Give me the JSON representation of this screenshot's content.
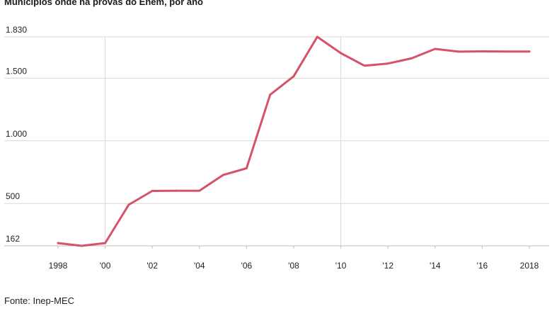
{
  "title": "Municípios onde há provas do Enem, por ano",
  "source": "Fonte: Inep-MEC",
  "colors": {
    "line": "#d6526a",
    "grid": "#d9d9d9",
    "axis": "#cfcfcf"
  },
  "chart_data": {
    "type": "line",
    "title": "Municípios onde há provas do Enem, por ano",
    "xlabel": "",
    "ylabel": "",
    "xlim": [
      1998,
      2018
    ],
    "ylim": [
      162,
      1830
    ],
    "grid": true,
    "y_ticks": [
      {
        "value": 1830,
        "label": "1.830"
      },
      {
        "value": 1500,
        "label": "1.500"
      },
      {
        "value": 1000,
        "label": "1.000"
      },
      {
        "value": 500,
        "label": "500"
      },
      {
        "value": 162,
        "label": "162"
      }
    ],
    "x_ticks": [
      {
        "value": 1998,
        "label": "1998"
      },
      {
        "value": 2000,
        "label": "'00"
      },
      {
        "value": 2002,
        "label": "'02"
      },
      {
        "value": 2004,
        "label": "'04"
      },
      {
        "value": 2006,
        "label": "'06"
      },
      {
        "value": 2008,
        "label": "'08"
      },
      {
        "value": 2010,
        "label": "'10"
      },
      {
        "value": 2012,
        "label": "'12"
      },
      {
        "value": 2014,
        "label": "'14"
      },
      {
        "value": 2016,
        "label": "'16"
      },
      {
        "value": 2018,
        "label": "2018"
      }
    ],
    "series": [
      {
        "x": [
          1998,
          1999,
          2000,
          2001,
          2002,
          2003,
          2004,
          2005,
          2006,
          2007,
          2008,
          2009,
          2010,
          2011,
          2012,
          2013,
          2014,
          2015,
          2016,
          2017,
          2018
        ],
        "values": [
          184,
          162,
          184,
          490,
          600,
          602,
          602,
          727,
          781,
          1368,
          1515,
          1830,
          1700,
          1600,
          1617,
          1658,
          1734,
          1712,
          1714,
          1713,
          1713
        ]
      }
    ]
  }
}
